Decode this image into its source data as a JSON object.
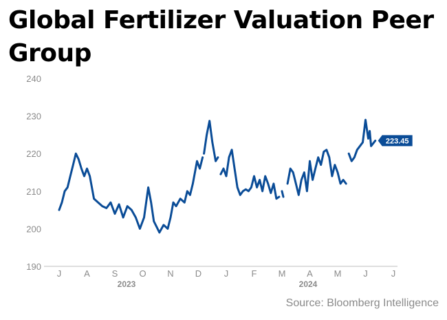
{
  "chart_data": {
    "type": "line",
    "title": "Global Fertilizer Valuation Peer Group",
    "source": "Source: Bloomberg Intelligence",
    "ylim": [
      190,
      240
    ],
    "yticks": [
      190,
      200,
      210,
      220,
      230,
      240
    ],
    "x_month_labels": [
      "J",
      "A",
      "S",
      "O",
      "N",
      "D",
      "J",
      "F",
      "M",
      "A",
      "M",
      "J",
      "J"
    ],
    "x_year_labels": [
      "2023",
      "2024"
    ],
    "last_value_label": "223.45",
    "line_color": "#0a4c97",
    "grid": false,
    "series": [
      {
        "values": [
          [
            0.0,
            205
          ],
          [
            0.1,
            207
          ],
          [
            0.2,
            210
          ],
          [
            0.3,
            211
          ],
          [
            0.4,
            214
          ],
          [
            0.5,
            217
          ],
          [
            0.6,
            220
          ],
          [
            0.7,
            218.5
          ],
          [
            0.8,
            216
          ],
          [
            0.9,
            214
          ],
          [
            1.0,
            216
          ],
          [
            1.1,
            214
          ],
          [
            1.25,
            208
          ],
          [
            1.4,
            207
          ],
          [
            1.55,
            206
          ],
          [
            1.7,
            205.5
          ],
          [
            1.85,
            207
          ],
          [
            2.0,
            204
          ],
          [
            2.15,
            206.5
          ],
          [
            2.3,
            203
          ],
          [
            2.45,
            206
          ],
          [
            2.6,
            205
          ],
          [
            2.75,
            203
          ],
          [
            2.9,
            200
          ],
          [
            3.05,
            203
          ],
          [
            3.2,
            211
          ],
          [
            3.3,
            207
          ],
          [
            3.4,
            202
          ],
          [
            3.5,
            200.5
          ],
          [
            3.6,
            199
          ],
          [
            3.75,
            201
          ],
          [
            3.9,
            200
          ],
          [
            4.0,
            203
          ],
          [
            4.1,
            207
          ],
          [
            4.2,
            206
          ],
          [
            4.35,
            208
          ],
          [
            4.5,
            207
          ],
          [
            4.6,
            210
          ],
          [
            4.7,
            209
          ],
          [
            4.8,
            212
          ],
          [
            4.95,
            218
          ],
          [
            5.05,
            216
          ],
          [
            5.15,
            219
          ],
          null,
          [
            5.2,
            220
          ],
          [
            5.3,
            225
          ],
          [
            5.4,
            228.7
          ],
          [
            5.5,
            223
          ],
          [
            5.62,
            218
          ],
          [
            5.7,
            219
          ],
          null,
          [
            5.8,
            214.5
          ],
          [
            5.9,
            216
          ],
          [
            6.0,
            214
          ],
          [
            6.1,
            219
          ],
          [
            6.2,
            221
          ],
          [
            6.3,
            216
          ],
          [
            6.4,
            211
          ],
          [
            6.5,
            209
          ],
          [
            6.6,
            210
          ],
          [
            6.7,
            210.5
          ],
          [
            6.8,
            210
          ],
          [
            6.9,
            211
          ],
          [
            7.0,
            214
          ],
          [
            7.1,
            211
          ],
          [
            7.2,
            213
          ],
          [
            7.3,
            210
          ],
          [
            7.4,
            214
          ],
          [
            7.5,
            212
          ],
          [
            7.6,
            209.5
          ],
          [
            7.7,
            212
          ],
          [
            7.8,
            208
          ],
          [
            7.9,
            208.5
          ],
          null,
          [
            8.0,
            210
          ],
          [
            8.05,
            208.5
          ],
          null,
          [
            8.2,
            212
          ],
          [
            8.3,
            216
          ],
          [
            8.4,
            215
          ],
          [
            8.5,
            212
          ],
          [
            8.6,
            209
          ],
          [
            8.7,
            213
          ],
          [
            8.8,
            215
          ],
          [
            8.9,
            210
          ],
          [
            9.0,
            218
          ],
          [
            9.1,
            213
          ],
          [
            9.2,
            216
          ],
          [
            9.3,
            219
          ],
          [
            9.4,
            217
          ],
          [
            9.5,
            220.5
          ],
          [
            9.6,
            221
          ],
          [
            9.7,
            219
          ],
          [
            9.8,
            214
          ],
          [
            9.9,
            217
          ],
          [
            10.0,
            215
          ],
          [
            10.1,
            212
          ],
          [
            10.2,
            213
          ],
          [
            10.3,
            212
          ],
          null,
          [
            10.4,
            220
          ],
          [
            10.5,
            218
          ],
          [
            10.6,
            219
          ],
          [
            10.7,
            221
          ],
          [
            10.8,
            222
          ],
          [
            10.9,
            223
          ],
          [
            11.0,
            229
          ],
          [
            11.1,
            224
          ],
          [
            11.15,
            226
          ],
          [
            11.2,
            222
          ],
          [
            11.35,
            223.45
          ]
        ]
      }
    ]
  }
}
